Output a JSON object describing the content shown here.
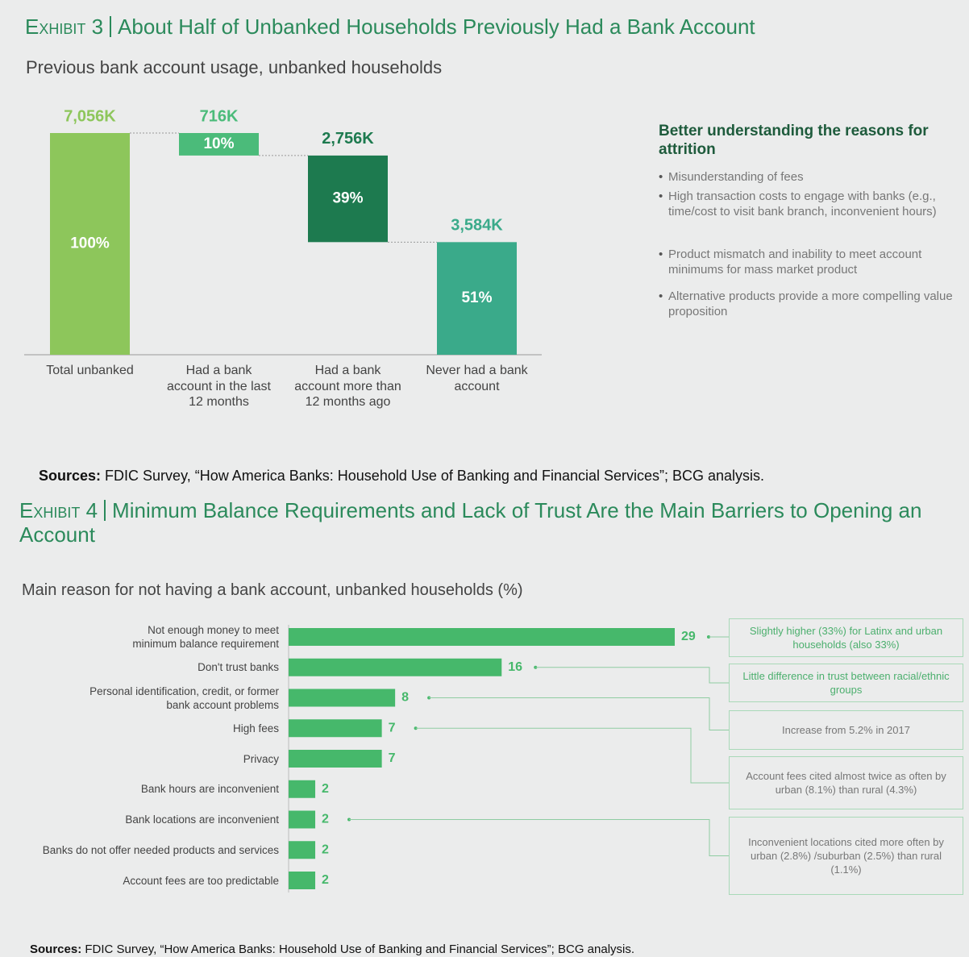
{
  "chart_data": [
    {
      "type": "waterfall",
      "exhibit": "Exhibit 3",
      "title": "About Half of Unbanked Households Previously Had a Bank Account",
      "subtitle": "Previous bank account usage, unbanked households",
      "categories": [
        "Total unbanked",
        "Had a bank account in the last 12 months",
        "Had a bank account more than 12 months ago",
        "Never had a bank account"
      ],
      "values": [
        7056,
        716,
        2756,
        3584
      ],
      "value_labels": [
        "7,056K",
        "716K",
        "2,756K",
        "3,584K"
      ],
      "share_labels": [
        "100%",
        "10%",
        "39%",
        "51%"
      ],
      "colors": [
        "#8dc65b",
        "#4bbb7a",
        "#1d7a4f",
        "#3aaa8a"
      ],
      "side_title": "Better understanding the reasons for attrition",
      "side_notes": [
        "Misunderstanding of fees",
        "High transaction costs to engage with banks (e.g., time/cost to visit bank branch, inconvenient hours)",
        "Product mismatch and inability to meet account minimums for mass market product",
        "Alternative products provide a more compelling value proposition"
      ],
      "sources_label": "Sources:",
      "sources": "FDIC Survey, “How America Banks: Household Use of Banking and Financial Services”; BCG analysis."
    },
    {
      "type": "hbar",
      "exhibit": "Exhibit 4",
      "title": "Minimum Balance Requirements and Lack of Trust Are the Main Barriers to Opening an Account",
      "subtitle": "Main reason for not having a bank account, unbanked households (%)",
      "categories": [
        "Not enough money to meet minimum balance requirement",
        "Don't trust banks",
        "Personal identification, credit, or former bank account problems",
        "High fees",
        "Privacy",
        "Bank hours are inconvenient",
        "Bank locations are inconvenient",
        "Banks do not offer needed products and services",
        "Account fees are too predictable"
      ],
      "values": [
        29,
        16,
        8,
        7,
        7,
        2,
        2,
        2,
        2
      ],
      "color": "#46b86b",
      "annotations": [
        "Slightly higher (33%) for Latinx and urban households (also 33%)",
        "Little difference in trust between racial/ethnic groups",
        "Increase from 5.2% in 2017",
        "Account fees cited almost twice as often by urban (8.1%) than rural (4.3%)",
        "Inconvenient locations cited more often by urban (2.8%) /suburban (2.5%) than rural (1.1%)"
      ],
      "sources_label": "Sources:",
      "sources": "FDIC Survey, “How America Banks: Household Use of Banking and Financial Services”; BCG analysis."
    }
  ]
}
